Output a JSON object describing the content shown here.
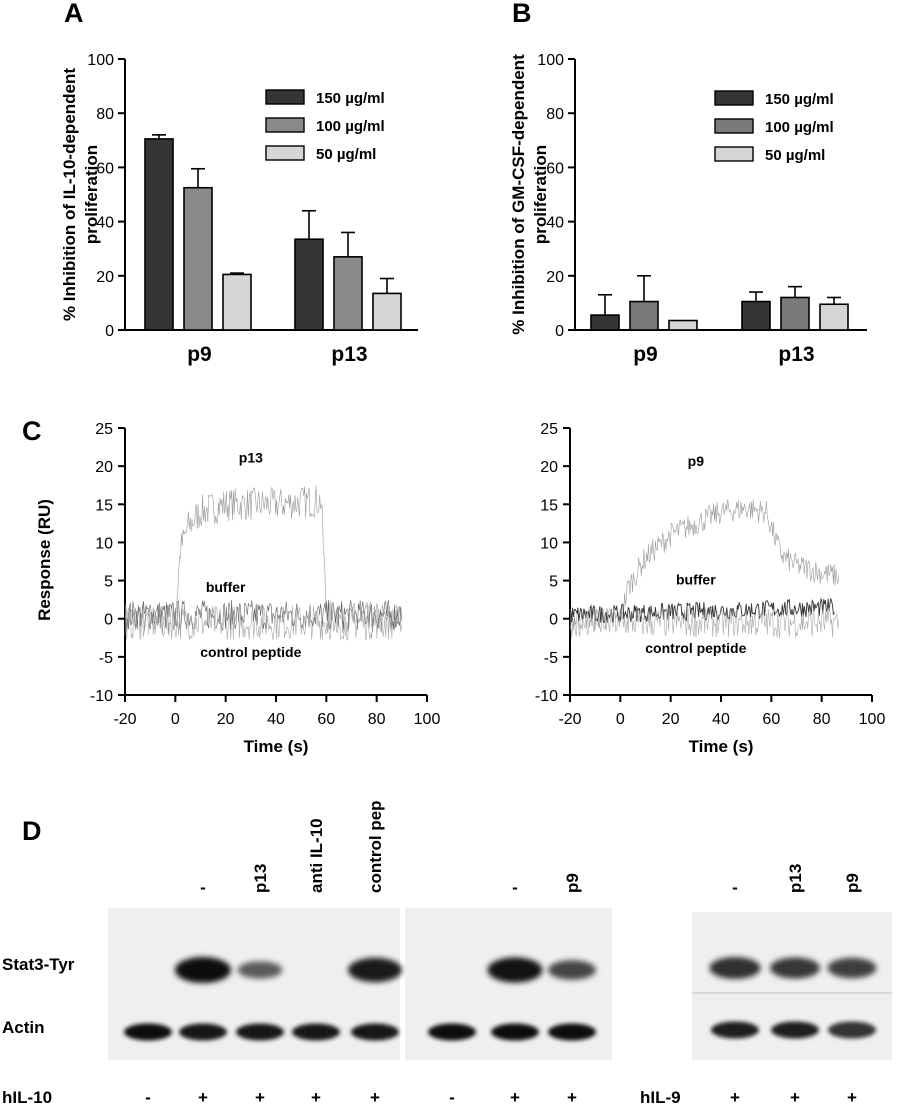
{
  "panels": {
    "A": {
      "letter": "A",
      "chart_data": {
        "type": "bar",
        "categories": [
          "p9",
          "p13"
        ],
        "ylabel": "% Inhibition of IL-10-dependent proliferation",
        "ylabel_lines": [
          "% Inhibition of IL-10-dependent",
          "proliferation"
        ],
        "ylim": [
          0,
          100
        ],
        "yticks": [
          0,
          20,
          40,
          60,
          80,
          100
        ],
        "legend_position": "top-right",
        "series": [
          {
            "name": "150 µg/ml",
            "color": "#353535",
            "values": [
              70.5,
              33.5
            ],
            "errors": [
              1.5,
              10.5
            ]
          },
          {
            "name": "100 µg/ml",
            "color": "#8a8a8a",
            "values": [
              52.5,
              27
            ],
            "errors": [
              7,
              9
            ]
          },
          {
            "name": "50 µg/ml",
            "color": "#d6d6d6",
            "values": [
              20.5,
              13.5
            ],
            "errors": [
              0.5,
              5.5
            ]
          }
        ]
      }
    },
    "B": {
      "letter": "B",
      "chart_data": {
        "type": "bar",
        "categories": [
          "p9",
          "p13"
        ],
        "ylabel": "% Inhibition of GM-CSF-dependent proliferation",
        "ylabel_lines": [
          "% Inhibition of GM-CSF-dependent",
          "proliferation"
        ],
        "ylim": [
          0,
          100
        ],
        "yticks": [
          0,
          20,
          40,
          60,
          80,
          100
        ],
        "legend_position": "top-right",
        "series": [
          {
            "name": "150 µg/ml",
            "color": "#353535",
            "values": [
              5.5,
              10.5
            ],
            "errors": [
              7.5,
              3.5
            ]
          },
          {
            "name": "100 µg/ml",
            "color": "#7a7a7a",
            "values": [
              10.5,
              12
            ],
            "errors": [
              9.5,
              4
            ]
          },
          {
            "name": "50 µg/ml",
            "color": "#d6d6d6",
            "values": [
              3.5,
              9.5
            ],
            "errors": [
              0,
              2.5
            ]
          }
        ]
      }
    },
    "C": {
      "letter": "C",
      "ylabel": "Response (RU)",
      "charts": [
        {
          "type": "line",
          "xlabel": "Time (s)",
          "xlim": [
            -20,
            100
          ],
          "ylim": [
            -10,
            25
          ],
          "xticks": [
            -20,
            0,
            20,
            40,
            60,
            80,
            100
          ],
          "yticks": [
            -10,
            -5,
            0,
            5,
            10,
            15,
            20,
            25
          ],
          "annotations": [
            {
              "text": "p13",
              "x": 30,
              "y": 20.5
            },
            {
              "text": "buffer",
              "x": 20,
              "y": 3.5
            },
            {
              "text": "control peptide",
              "x": 30,
              "y": -5
            }
          ],
          "series": [
            {
              "kind": "binding",
              "x": [
                -20,
                0,
                2,
                5,
                10,
                20,
                40,
                58,
                60,
                62,
                70,
                90
              ],
              "y": [
                0,
                0,
                9,
                12,
                14,
                15,
                15,
                15.5,
                1,
                0,
                0,
                0
              ],
              "noise": 2.2
            },
            {
              "kind": "buffer",
              "x": [
                -20,
                90
              ],
              "y": [
                0.5,
                0.5
              ],
              "noise": 2.0
            },
            {
              "kind": "control",
              "x": [
                -20,
                90
              ],
              "y": [
                -0.5,
                -0.5
              ],
              "noise": 2.3
            }
          ]
        },
        {
          "type": "line",
          "xlabel": "Time (s)",
          "xlim": [
            -20,
            100
          ],
          "ylim": [
            -10,
            25
          ],
          "xticks": [
            -20,
            0,
            20,
            40,
            60,
            80,
            100
          ],
          "yticks": [
            -10,
            -5,
            0,
            5,
            10,
            15,
            20,
            25
          ],
          "annotations": [
            {
              "text": "p9",
              "x": 30,
              "y": 20
            },
            {
              "text": "buffer",
              "x": 30,
              "y": 4.5
            },
            {
              "text": "control peptide",
              "x": 30,
              "y": -4.5
            }
          ],
          "series": [
            {
              "kind": "binding",
              "x": [
                -20,
                0,
                3,
                10,
                20,
                30,
                40,
                50,
                58,
                62,
                65,
                70,
                80,
                87
              ],
              "y": [
                0,
                0,
                4,
                8,
                11,
                12.5,
                14,
                14.5,
                14,
                10,
                8,
                7,
                6,
                5.5
              ],
              "noise": 1.6
            },
            {
              "kind": "buffer",
              "x": [
                -20,
                85
              ],
              "y": [
                0.5,
                1.5
              ],
              "noise": 1.2
            },
            {
              "kind": "control",
              "x": [
                -20,
                87
              ],
              "y": [
                -0.5,
                -0.5
              ],
              "noise": 2.0
            }
          ]
        }
      ]
    },
    "D": {
      "letter": "D",
      "row_labels": [
        "Stat3-Tyr",
        "Actin"
      ],
      "treatment_labels": [
        "hIL-10",
        "hIL-9"
      ],
      "blots": [
        {
          "lanes": [
            {
              "label": "",
              "treatment": "-",
              "stat3": 0,
              "actin": 1
            },
            {
              "label": "-",
              "treatment": "+",
              "stat3": 1,
              "actin": 0.9
            },
            {
              "label": "p13",
              "treatment": "+",
              "stat3": 0.45,
              "actin": 0.9
            },
            {
              "label": "anti IL-10",
              "treatment": "+",
              "stat3": 0,
              "actin": 0.9
            },
            {
              "label": "control pep",
              "treatment": "+",
              "stat3": 0.9,
              "actin": 0.9
            }
          ]
        },
        {
          "lanes": [
            {
              "label": "",
              "treatment": "-",
              "stat3": 0,
              "actin": 1
            },
            {
              "label": "-",
              "treatment": "+",
              "stat3": 0.95,
              "actin": 1
            },
            {
              "label": "p9",
              "treatment": "+",
              "stat3": 0.6,
              "actin": 1
            }
          ]
        },
        {
          "lanes": [
            {
              "label": "-",
              "treatment": "+",
              "stat3": 0.75,
              "actin": 0.85
            },
            {
              "label": "p13",
              "treatment": "+",
              "stat3": 0.7,
              "actin": 0.85
            },
            {
              "label": "p9",
              "treatment": "+",
              "stat3": 0.65,
              "actin": 0.7
            }
          ]
        }
      ]
    }
  }
}
